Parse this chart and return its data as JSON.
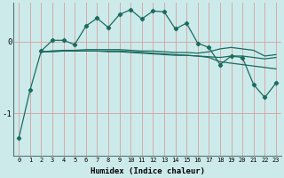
{
  "title": "",
  "xlabel": "Humidex (Indice chaleur)",
  "bg_color": "#cdeaea",
  "line_color": "#1a6b60",
  "grid_color": "#d4a0a0",
  "xlim": [
    -0.5,
    23.5
  ],
  "ylim": [
    -1.6,
    0.55
  ],
  "yticks": [
    -1,
    0
  ],
  "xticks": [
    0,
    1,
    2,
    3,
    4,
    5,
    6,
    7,
    8,
    9,
    10,
    11,
    12,
    13,
    14,
    15,
    16,
    17,
    18,
    19,
    20,
    21,
    22,
    23
  ],
  "s1_x": [
    0,
    1,
    2,
    3,
    4,
    5,
    6,
    7,
    8,
    9,
    10,
    11,
    12,
    13,
    14,
    15,
    16,
    17,
    18,
    19,
    20,
    21,
    22,
    23
  ],
  "s1_y": [
    -1.35,
    -0.68,
    -0.13,
    0.02,
    0.02,
    -0.04,
    0.22,
    0.33,
    0.2,
    0.38,
    0.45,
    0.32,
    0.43,
    0.42,
    0.18,
    0.26,
    -0.02,
    -0.08,
    -0.32,
    -0.2,
    -0.22,
    -0.6,
    -0.78,
    -0.58
  ],
  "s2_x": [
    2,
    3,
    4,
    5,
    6,
    7,
    8,
    9,
    10,
    11,
    12,
    13,
    14,
    15,
    16,
    17,
    18,
    19,
    20,
    21,
    22,
    23
  ],
  "s2_y": [
    -0.14,
    -0.14,
    -0.13,
    -0.13,
    -0.13,
    -0.13,
    -0.14,
    -0.14,
    -0.15,
    -0.16,
    -0.17,
    -0.18,
    -0.19,
    -0.19,
    -0.2,
    -0.21,
    -0.22,
    -0.2,
    -0.2,
    -0.22,
    -0.24,
    -0.22
  ],
  "s3_x": [
    2,
    3,
    4,
    5,
    6,
    7,
    8,
    9,
    10,
    11,
    12,
    13,
    14,
    15,
    16,
    17,
    18,
    19,
    20,
    21,
    22,
    23
  ],
  "s3_y": [
    -0.14,
    -0.13,
    -0.12,
    -0.12,
    -0.11,
    -0.11,
    -0.11,
    -0.11,
    -0.12,
    -0.13,
    -0.13,
    -0.14,
    -0.15,
    -0.15,
    -0.16,
    -0.14,
    -0.1,
    -0.08,
    -0.1,
    -0.12,
    -0.2,
    -0.18
  ],
  "s4_x": [
    2,
    3,
    4,
    5,
    6,
    7,
    8,
    9,
    10,
    11,
    12,
    13,
    14,
    15,
    16,
    17,
    18,
    19,
    20,
    21,
    22,
    23
  ],
  "s4_y": [
    -0.14,
    -0.13,
    -0.13,
    -0.13,
    -0.13,
    -0.13,
    -0.13,
    -0.13,
    -0.14,
    -0.15,
    -0.16,
    -0.17,
    -0.18,
    -0.19,
    -0.2,
    -0.22,
    -0.28,
    -0.3,
    -0.32,
    -0.34,
    -0.36,
    -0.38
  ]
}
